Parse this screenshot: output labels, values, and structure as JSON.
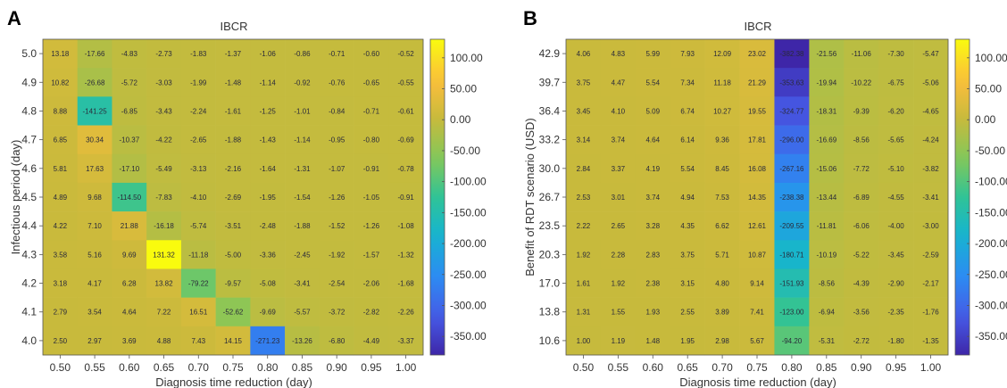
{
  "chart_data": [
    {
      "type": "heatmap",
      "panel": "A",
      "title": "IBCR",
      "xlabel": "Diagnosis time reduction (day)",
      "ylabel": "Infectious period (day)",
      "x": [
        "0.50",
        "0.55",
        "0.60",
        "0.65",
        "0.70",
        "0.75",
        "0.80",
        "0.85",
        "0.90",
        "0.95",
        "1.00"
      ],
      "y": [
        "5.0",
        "4.9",
        "4.8",
        "4.7",
        "4.6",
        "4.5",
        "4.4",
        "4.3",
        "4.2",
        "4.1",
        "4.0"
      ],
      "values": [
        [
          13.18,
          -17.66,
          -4.83,
          -2.73,
          -1.83,
          -1.37,
          -1.06,
          -0.86,
          -0.71,
          -0.6,
          -0.52
        ],
        [
          10.82,
          -26.68,
          -5.72,
          -3.03,
          -1.99,
          -1.48,
          -1.14,
          -0.92,
          -0.76,
          -0.65,
          -0.55
        ],
        [
          8.88,
          -141.25,
          -6.85,
          -3.43,
          -2.24,
          -1.61,
          -1.25,
          -1.01,
          -0.84,
          -0.71,
          -0.61
        ],
        [
          6.85,
          30.34,
          -10.37,
          -4.22,
          -2.65,
          -1.88,
          -1.43,
          -1.14,
          -0.95,
          -0.8,
          -0.69
        ],
        [
          5.81,
          17.63,
          -17.1,
          -5.49,
          -3.13,
          -2.16,
          -1.64,
          -1.31,
          -1.07,
          -0.91,
          -0.78
        ],
        [
          4.89,
          9.68,
          -114.5,
          -7.83,
          -4.1,
          -2.69,
          -1.95,
          -1.54,
          -1.26,
          -1.05,
          -0.91
        ],
        [
          4.22,
          7.1,
          21.88,
          -16.18,
          -5.74,
          -3.51,
          -2.48,
          -1.88,
          -1.52,
          -1.26,
          -1.08
        ],
        [
          3.58,
          5.16,
          9.69,
          131.32,
          -11.18,
          -5.0,
          -3.36,
          -2.45,
          -1.92,
          -1.57,
          -1.32
        ],
        [
          3.18,
          4.17,
          6.28,
          13.82,
          -79.22,
          -9.57,
          -5.08,
          -3.41,
          -2.54,
          -2.06,
          -1.68
        ],
        [
          2.79,
          3.54,
          4.64,
          7.22,
          16.51,
          -52.62,
          -9.69,
          -5.57,
          -3.72,
          -2.82,
          -2.26
        ],
        [
          2.5,
          2.97,
          3.69,
          4.88,
          7.43,
          14.15,
          -271.23,
          -13.26,
          -6.8,
          -4.49,
          -3.37
        ]
      ],
      "colorbar": {
        "ticks": [
          "100.00",
          "50.00",
          "0.00",
          "-50.00",
          "-100.00",
          "-150.00",
          "-200.00",
          "-250.00",
          "-300.00",
          "-350.00"
        ],
        "range": [
          -380,
          130
        ]
      }
    },
    {
      "type": "heatmap",
      "panel": "B",
      "title": "IBCR",
      "xlabel": "Diagnosis time reduction (day)",
      "ylabel": "Benefit of RDT scenario (USD)",
      "x": [
        "0.50",
        "0.55",
        "0.60",
        "0.65",
        "0.70",
        "0.75",
        "0.80",
        "0.85",
        "0.90",
        "0.95",
        "1.00"
      ],
      "y": [
        "42.9",
        "39.7",
        "36.4",
        "33.2",
        "30.0",
        "26.7",
        "23.5",
        "20.3",
        "17.0",
        "13.8",
        "10.6"
      ],
      "values": [
        [
          4.06,
          4.83,
          5.99,
          7.93,
          12.09,
          23.02,
          -382.38,
          -21.56,
          -11.06,
          -7.3,
          -5.47
        ],
        [
          3.75,
          4.47,
          5.54,
          7.34,
          11.18,
          21.29,
          -353.63,
          -19.94,
          -10.22,
          -6.75,
          -5.06
        ],
        [
          3.45,
          4.1,
          5.09,
          6.74,
          10.27,
          19.55,
          -324.77,
          -18.31,
          -9.39,
          -6.2,
          -4.65
        ],
        [
          3.14,
          3.74,
          4.64,
          6.14,
          9.36,
          17.81,
          -296.0,
          -16.69,
          -8.56,
          -5.65,
          -4.24
        ],
        [
          2.84,
          3.37,
          4.19,
          5.54,
          8.45,
          16.08,
          -267.16,
          -15.06,
          -7.72,
          -5.1,
          -3.82
        ],
        [
          2.53,
          3.01,
          3.74,
          4.94,
          7.53,
          14.35,
          -238.38,
          -13.44,
          -6.89,
          -4.55,
          -3.41
        ],
        [
          2.22,
          2.65,
          3.28,
          4.35,
          6.62,
          12.61,
          -209.55,
          -11.81,
          -6.06,
          -4.0,
          -3.0
        ],
        [
          1.92,
          2.28,
          2.83,
          3.75,
          5.71,
          10.87,
          -180.71,
          -10.19,
          -5.22,
          -3.45,
          -2.59
        ],
        [
          1.61,
          1.92,
          2.38,
          3.15,
          4.8,
          9.14,
          -151.93,
          -8.56,
          -4.39,
          -2.9,
          -2.17
        ],
        [
          1.31,
          1.55,
          1.93,
          2.55,
          3.89,
          7.41,
          -123.0,
          -6.94,
          -3.56,
          -2.35,
          -1.76
        ],
        [
          1.0,
          1.19,
          1.48,
          1.95,
          2.98,
          5.67,
          -94.2,
          -5.31,
          -2.72,
          -1.8,
          -1.35
        ]
      ],
      "colorbar": {
        "ticks": [
          "100.00",
          "50.00",
          "0.00",
          "-50.00",
          "-100.00",
          "-150.00",
          "-200.00",
          "-250.00",
          "-300.00",
          "-350.00"
        ],
        "range": [
          -380,
          130
        ]
      }
    }
  ]
}
